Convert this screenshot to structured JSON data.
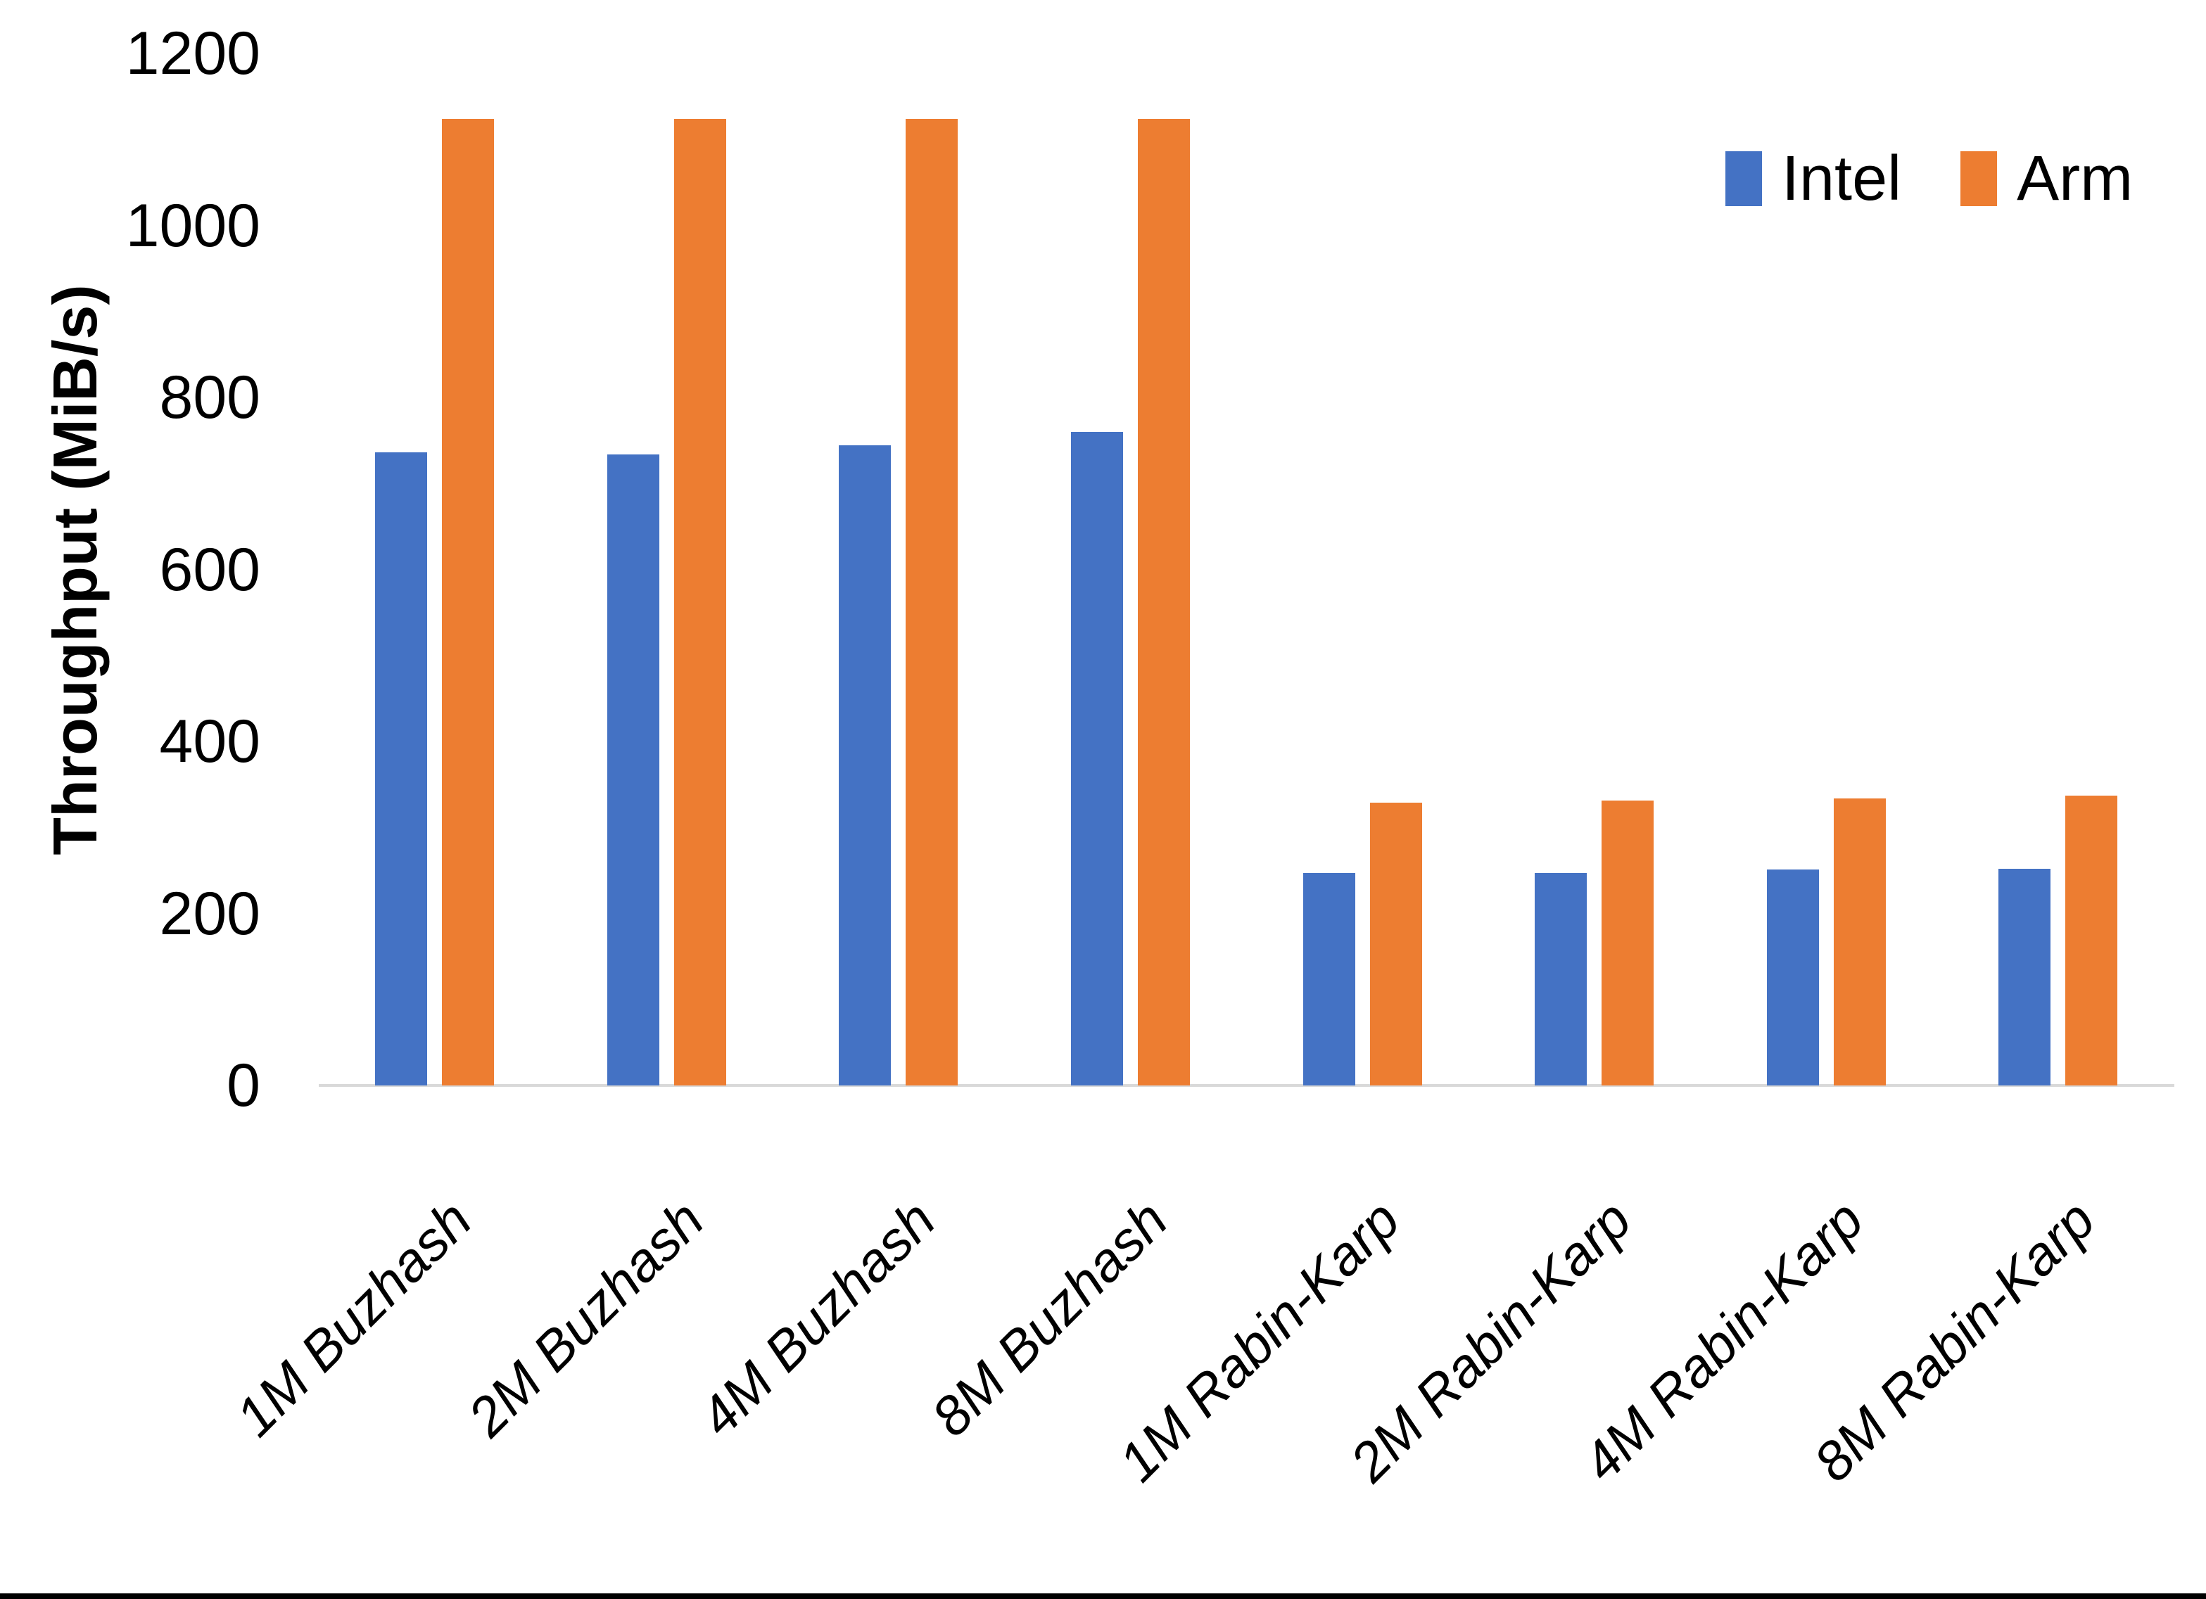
{
  "chart_data": {
    "type": "bar",
    "title": "",
    "xlabel": "",
    "ylabel": "Throughput (MiB/s)",
    "ylim": [
      0,
      1200
    ],
    "yticks": [
      0,
      200,
      400,
      600,
      800,
      1000,
      1200
    ],
    "grid": false,
    "legend_position": "top-right",
    "categories": [
      "1M Buzhash",
      "2M Buzhash",
      "4M Buzhash",
      "8M Buzhash",
      "1M Rabin-Karp",
      "2M Rabin-Karp",
      "4M Rabin-Karp",
      "8M Rabin-Karp"
    ],
    "series": [
      {
        "name": "Intel",
        "color": "#4472C4",
        "values": [
          736,
          734,
          744,
          760,
          247,
          247,
          251,
          252
        ]
      },
      {
        "name": "Arm",
        "color": "#ED7D31",
        "values": [
          1124,
          1124,
          1124,
          1124,
          329,
          331,
          334,
          337
        ]
      }
    ]
  },
  "colors": {
    "intel": "#4472C4",
    "arm": "#ED7D31",
    "axis_line": "#d9d9d9",
    "text": "#000000",
    "bottom_border": "#000000"
  }
}
